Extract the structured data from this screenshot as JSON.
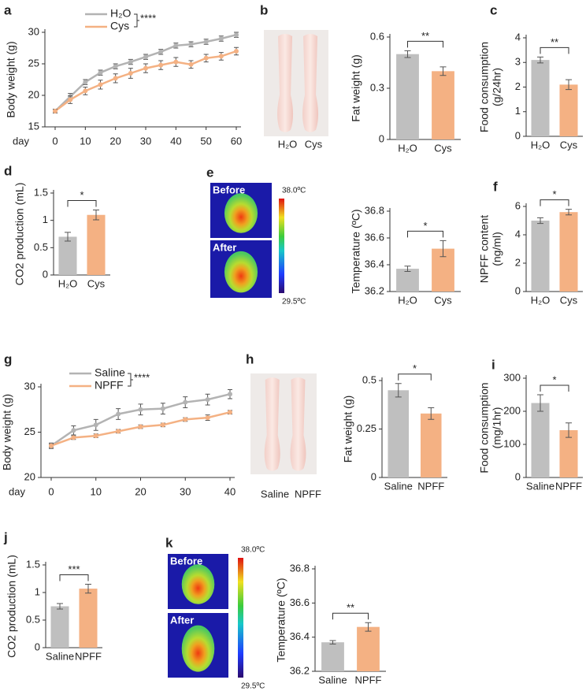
{
  "chart_data": [
    {
      "panel": "a",
      "type": "line",
      "ylabel": [
        "Body weight (g)"
      ],
      "xlabel": "day",
      "significance": "****",
      "x": [
        0,
        5,
        10,
        15,
        20,
        25,
        30,
        35,
        40,
        45,
        50,
        55,
        60
      ],
      "xlim": [
        0,
        60
      ],
      "xticks": [
        0,
        10,
        20,
        30,
        40,
        50,
        60
      ],
      "ylim": [
        15,
        30
      ],
      "yticks": [
        15,
        20,
        25,
        30
      ],
      "series": [
        {
          "name": "H₂O",
          "color": "#b3b3b3",
          "values": [
            17.5,
            19.8,
            22.1,
            23.6,
            24.6,
            25.3,
            26.1,
            26.9,
            27.9,
            28.1,
            28.5,
            29,
            29.6
          ],
          "errors": [
            0.3,
            0.5,
            0.4,
            0.4,
            0.4,
            0.4,
            0.4,
            0.4,
            0.4,
            0.4,
            0.4,
            0.4,
            0.4
          ]
        },
        {
          "name": "Cys",
          "color": "#f4b183",
          "values": [
            17.5,
            19.3,
            20.7,
            21.7,
            22.7,
            23.5,
            24.3,
            24.8,
            25.3,
            24.9,
            25.9,
            26.2,
            27
          ],
          "errors": [
            0.3,
            0.6,
            0.6,
            0.7,
            0.7,
            0.8,
            0.7,
            0.7,
            0.7,
            0.6,
            0.6,
            0.6,
            0.6
          ]
        }
      ]
    },
    {
      "panel": "b",
      "type": "bar",
      "ylabel": [
        "Fat weight (g)"
      ],
      "photo_labels": [
        "H₂O",
        "Cys"
      ],
      "categories": [
        "H₂O",
        "Cys"
      ],
      "values": [
        0.5,
        0.4
      ],
      "errors": [
        0.02,
        0.025
      ],
      "colors": [
        "#bfbfbf",
        "#f4b183"
      ],
      "significance": "**",
      "ylim": [
        0,
        0.6
      ],
      "yticks": [
        0,
        0.3,
        0.6
      ]
    },
    {
      "panel": "c",
      "type": "bar",
      "ylabel": [
        "Food consumption",
        "(g/24hr)"
      ],
      "categories": [
        "H₂O",
        "Cys"
      ],
      "values": [
        3.1,
        2.1
      ],
      "errors": [
        0.12,
        0.2
      ],
      "colors": [
        "#bfbfbf",
        "#f4b183"
      ],
      "significance": "**",
      "ylim": [
        0,
        4
      ],
      "yticks": [
        0,
        1,
        2,
        3,
        4
      ]
    },
    {
      "panel": "d",
      "type": "bar",
      "ylabel": [
        "CO2 production (mL)"
      ],
      "categories": [
        "H₂O",
        "Cys"
      ],
      "values": [
        0.7,
        1.1
      ],
      "errors": [
        0.08,
        0.09
      ],
      "colors": [
        "#bfbfbf",
        "#f4b183"
      ],
      "significance": "*",
      "ylim": [
        0,
        1.5
      ],
      "yticks": [
        0,
        0.5,
        1,
        1.5
      ]
    },
    {
      "panel": "e",
      "type": "bar",
      "ylabel": [
        "Temperature (ºC)"
      ],
      "image_labels": [
        "Before",
        "After"
      ],
      "scale_labels": [
        "38.0ºC",
        "29.5ºC"
      ],
      "categories": [
        "H₂O",
        "Cys"
      ],
      "values": [
        36.37,
        36.52
      ],
      "errors": [
        0.02,
        0.06
      ],
      "colors": [
        "#bfbfbf",
        "#f4b183"
      ],
      "significance": "*",
      "ylim": [
        36.2,
        36.8
      ],
      "yticks": [
        36.2,
        36.4,
        36.6,
        36.8
      ]
    },
    {
      "panel": "f",
      "type": "bar",
      "ylabel": [
        "NPFF content",
        "(ng/ml)"
      ],
      "categories": [
        "H₂O",
        "Cys"
      ],
      "values": [
        5,
        5.6
      ],
      "errors": [
        0.2,
        0.2
      ],
      "colors": [
        "#bfbfbf",
        "#f4b183"
      ],
      "significance": "*",
      "ylim": [
        0,
        6
      ],
      "yticks": [
        0,
        2,
        4,
        6
      ]
    },
    {
      "panel": "g",
      "type": "line",
      "ylabel": [
        "Body weight (g)"
      ],
      "xlabel": "day",
      "significance": "****",
      "x": [
        0,
        5,
        10,
        15,
        20,
        25,
        30,
        35,
        40
      ],
      "xlim": [
        0,
        40
      ],
      "xticks": [
        0,
        10,
        20,
        30,
        40
      ],
      "ylim": [
        20,
        30
      ],
      "yticks": [
        20,
        25,
        30
      ],
      "series": [
        {
          "name": "Saline",
          "color": "#b3b3b3",
          "values": [
            23.5,
            25.2,
            25.8,
            27,
            27.5,
            27.6,
            28.3,
            28.6,
            29.2
          ],
          "errors": [
            0.3,
            0.5,
            0.6,
            0.6,
            0.6,
            0.6,
            0.6,
            0.6,
            0.5
          ]
        },
        {
          "name": "NPFF",
          "color": "#f4b183",
          "values": [
            23.5,
            24.4,
            24.6,
            25.1,
            25.6,
            25.8,
            26.4,
            26.6,
            27.2
          ],
          "errors": [
            0.2,
            0.2,
            0.2,
            0.2,
            0.2,
            0.2,
            0.2,
            0.3,
            0.2
          ]
        }
      ]
    },
    {
      "panel": "h",
      "type": "bar",
      "ylabel": [
        "Fat weight (g)"
      ],
      "photo_labels": [
        "Saline",
        "NPFF"
      ],
      "categories": [
        "Saline",
        "NPFF"
      ],
      "values": [
        0.45,
        0.33
      ],
      "errors": [
        0.035,
        0.03
      ],
      "colors": [
        "#bfbfbf",
        "#f4b183"
      ],
      "significance": "*",
      "ylim": [
        0,
        0.5
      ],
      "yticks": [
        0,
        0.25,
        0.5
      ]
    },
    {
      "panel": "i",
      "type": "bar",
      "ylabel": [
        "Food consumption",
        "(mg/1hr)"
      ],
      "categories": [
        "Saline",
        "NPFF"
      ],
      "values": [
        225,
        143
      ],
      "errors": [
        25,
        22
      ],
      "colors": [
        "#bfbfbf",
        "#f4b183"
      ],
      "significance": "*",
      "ylim": [
        0,
        300
      ],
      "yticks": [
        0,
        100,
        200,
        300
      ]
    },
    {
      "panel": "j",
      "type": "bar",
      "ylabel": [
        "CO2 production (mL)"
      ],
      "categories": [
        "Saline",
        "NPFF"
      ],
      "values": [
        0.75,
        1.07
      ],
      "errors": [
        0.05,
        0.08
      ],
      "colors": [
        "#bfbfbf",
        "#f4b183"
      ],
      "significance": "***",
      "ylim": [
        0,
        1.5
      ],
      "yticks": [
        0,
        0.5,
        1,
        1.5
      ]
    },
    {
      "panel": "k",
      "type": "bar",
      "ylabel": [
        "Temperature (ºC)"
      ],
      "image_labels": [
        "Before",
        "After"
      ],
      "scale_labels": [
        "38.0ºC",
        "29.5ºC"
      ],
      "categories": [
        "Saline",
        "NPFF"
      ],
      "values": [
        36.37,
        36.46
      ],
      "errors": [
        0.01,
        0.025
      ],
      "colors": [
        "#bfbfbf",
        "#f4b183"
      ],
      "significance": "**",
      "ylim": [
        36.2,
        36.8
      ],
      "yticks": [
        36.2,
        36.4,
        36.6,
        36.8
      ]
    }
  ]
}
